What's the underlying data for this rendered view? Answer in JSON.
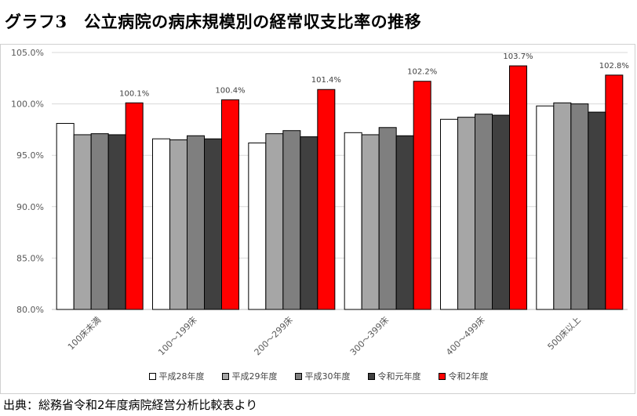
{
  "title": "グラフ3　公立病院の病床規模別の経常収支比率の推移",
  "source": "出典：総務省令和2年度病院経営分析比較表より",
  "chart_data": {
    "type": "bar",
    "ylim": [
      80,
      105
    ],
    "yticks": [
      "80.0%",
      "85.0%",
      "90.0%",
      "95.0%",
      "100.0%",
      "105.0%"
    ],
    "ytick_values": [
      80,
      85,
      90,
      95,
      100,
      105
    ],
    "categories": [
      "100床未満",
      "100～199床",
      "200～299床",
      "300～399床",
      "400～499床",
      "500床以上"
    ],
    "series": [
      {
        "name": "平成28年度",
        "color": "#ffffff",
        "values": [
          98.1,
          96.6,
          96.2,
          97.2,
          98.5,
          99.8
        ]
      },
      {
        "name": "平成29年度",
        "color": "#a6a6a6",
        "values": [
          97.0,
          96.5,
          97.1,
          97.0,
          98.7,
          100.1
        ]
      },
      {
        "name": "平成30年度",
        "color": "#7f7f7f",
        "values": [
          97.1,
          96.9,
          97.4,
          97.7,
          99.0,
          100.0
        ]
      },
      {
        "name": "令和元年度",
        "color": "#404040",
        "values": [
          97.0,
          96.6,
          96.8,
          96.9,
          98.9,
          99.2
        ]
      },
      {
        "name": "令和2年度",
        "color": "#ff0000",
        "values": [
          100.1,
          100.4,
          101.4,
          102.2,
          103.7,
          102.8
        ]
      }
    ],
    "data_labels": [
      "100.1%",
      "100.4%",
      "101.4%",
      "102.2%",
      "103.7%",
      "102.8%"
    ],
    "legend_position": "bottom",
    "grid": true
  }
}
